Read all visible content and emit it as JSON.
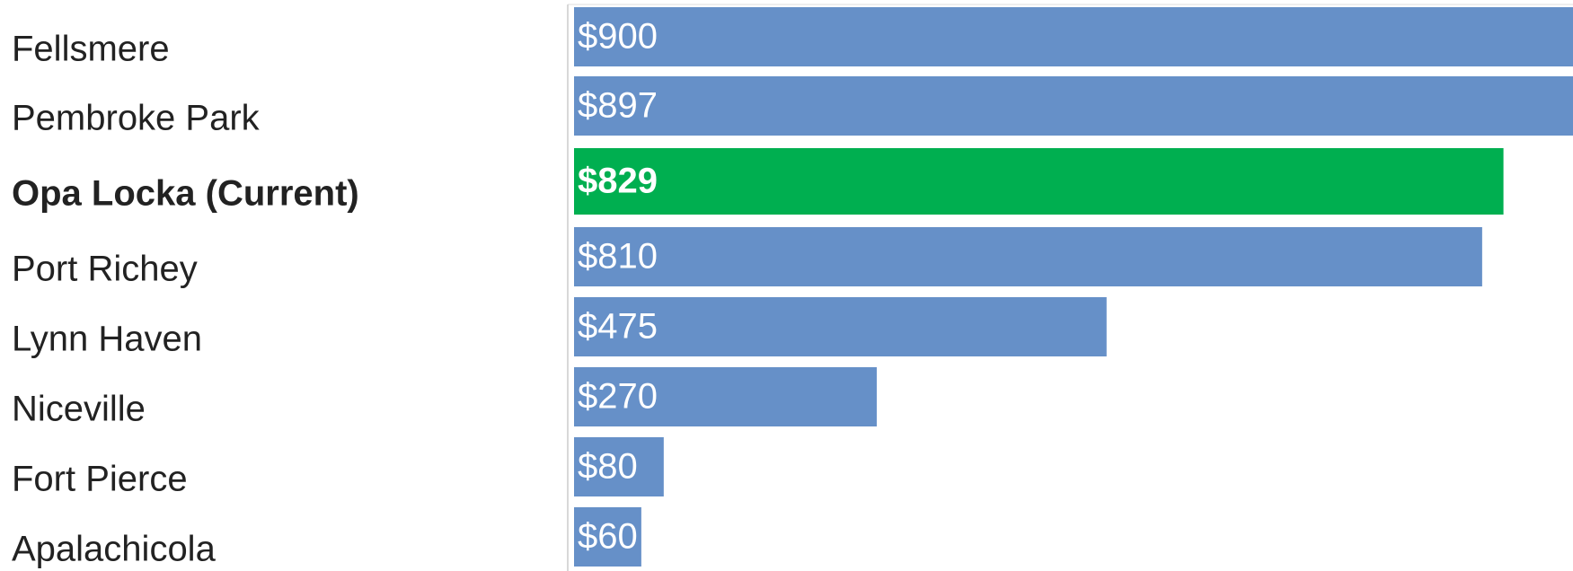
{
  "chart_data": {
    "type": "bar",
    "orientation": "horizontal",
    "categories": [
      "Fellsmere",
      "Pembroke Park",
      "Opa Locka (Current)",
      "Port Richey",
      "Lynn Haven",
      "Niceville",
      "Fort Pierce",
      "Apalachicola"
    ],
    "values": [
      900,
      897,
      829,
      810,
      475,
      270,
      80,
      60
    ],
    "value_labels": [
      "$900",
      "$897",
      "$829",
      "$810",
      "$475",
      "$270",
      "$80",
      "$60"
    ],
    "color": "#6690c8",
    "highlight": 2,
    "highlight_color": "#00af50"
  }
}
